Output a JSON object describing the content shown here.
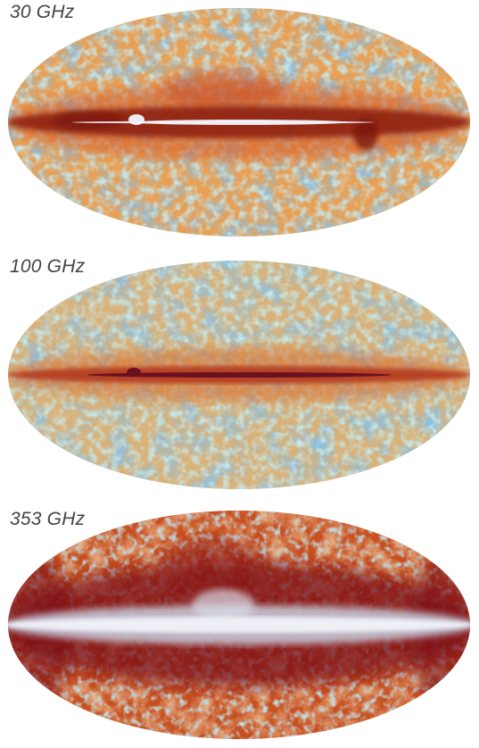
{
  "maps": [
    {
      "label": "30 GHz",
      "palette": {
        "background": "#e8a055",
        "cool": "#3a86d6",
        "mid": "#8fcfd8",
        "warm": "#d8642a",
        "hot": "#8a1a10",
        "core": "#e8e4ee"
      }
    },
    {
      "label": "100 GHz",
      "palette": {
        "background": "#d9b27a",
        "cool": "#3a86d6",
        "mid": "#8fd0d8",
        "warm": "#d8712f",
        "hot": "#8a1a10",
        "core": "#6a1020"
      }
    },
    {
      "label": "353 GHz",
      "palette": {
        "background": "#c8501f",
        "cool": "#88b8c8",
        "mid": "#e3a062",
        "warm": "#b5301a",
        "hot": "#7a0c14",
        "core": "#e8eaf2"
      }
    }
  ]
}
